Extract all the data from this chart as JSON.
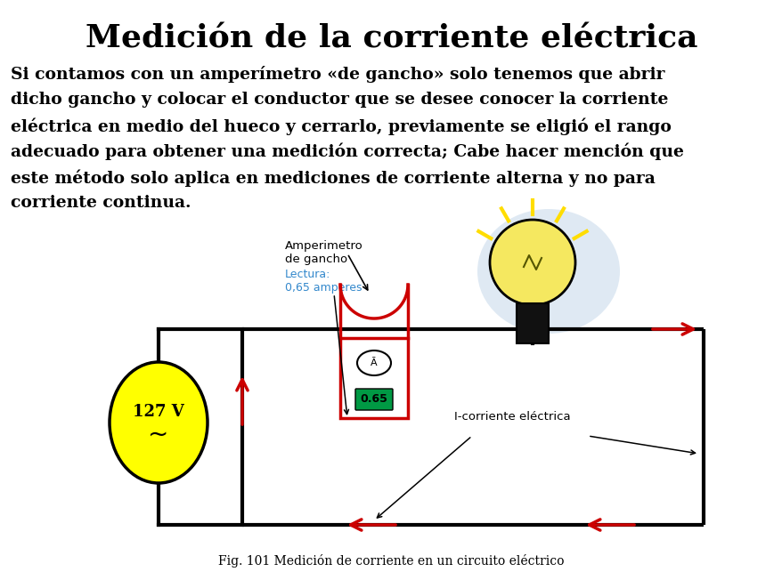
{
  "title": "Medición de la corriente eléctrica",
  "body_lines": [
    "Si contamos con un amperímetro «de gancho» solo tenemos que abrir",
    "dicho gancho y colocar el conductor que se desee conocer la corriente",
    "eléctrica en medio del hueco y cerrarlo, previamente se eligió el rango",
    "adecuado para obtener una medición correcta; Cabe hacer mención que",
    "este método solo aplica en mediciones de corriente alterna y no para",
    "corriente continua."
  ],
  "fig_caption": "Fig. 101 Medición de corriente en un circuito eléctrico",
  "amperimetro_label": "Amperimetro\nde gancho",
  "lectura_label": "Lectura:\n0,65 amperes",
  "label_corriente": "I-corriente eléctrica",
  "voltage_label": "127 V",
  "tilde": "~",
  "display_value": "0.65",
  "symbol_A": "Ā",
  "bg_color": "#ffffff",
  "title_color": "#000000",
  "body_color": "#000000",
  "lectura_color": "#3388cc",
  "yellow_color": "#ffff00",
  "red_color": "#cc0000",
  "black": "#000000",
  "green_display_bg": "#009944",
  "title_fontsize": 26,
  "body_fontsize": 13.5,
  "caption_fontsize": 10,
  "lw_circuit": 3.0
}
